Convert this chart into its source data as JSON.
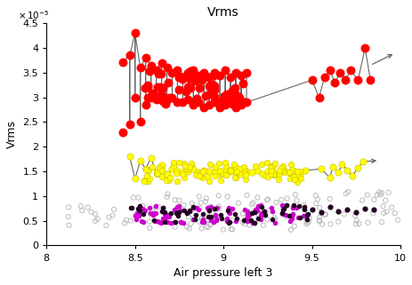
{
  "title": "Vrms",
  "xlabel": "Air pressure left 3",
  "ylabel": "Vrms",
  "xlim": [
    8,
    10
  ],
  "ylim": [
    0,
    4.5e-05
  ],
  "ytick_labels": [
    "0",
    "0.5",
    "1",
    "1.5",
    "2",
    "2.5",
    "3",
    "3.5",
    "4",
    "4.5"
  ],
  "ytick_vals": [
    0,
    5e-06,
    1e-05,
    1.5e-05,
    2e-05,
    2.5e-05,
    3e-05,
    3.5e-05,
    4e-05,
    4.5e-05
  ],
  "xtick_vals": [
    8,
    8.5,
    9,
    9.5,
    10
  ],
  "xtick_labels": [
    "8",
    "8.5",
    "9",
    "9.5",
    "10"
  ],
  "red_color": "#FF0000",
  "yellow_color": "#FFFF00",
  "purple_color": "#AA00AA",
  "black_purple_color": "#330033",
  "gray_color": "#BBBBBB",
  "line_color": "#666666",
  "bg_color": "#FFFFFF",
  "title_fontsize": 10,
  "label_fontsize": 9,
  "tick_fontsize": 8
}
